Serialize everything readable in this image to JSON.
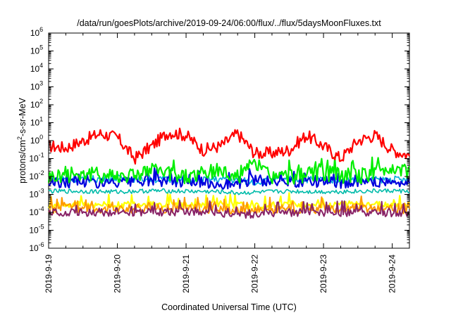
{
  "chart_data": {
    "type": "line",
    "title": "/data/run/goesPlots/archive/2019-09-24/06:00/flux/../flux/5daysMoonFluxes.txt",
    "xlabel": "Coordinated Universal Time (UTC)",
    "ylabel": {
      "prefix": "protons/cm",
      "sup": "2",
      "suffix": "-s-sr-MeV"
    },
    "yscale": "log",
    "ylim": [
      -6,
      6
    ],
    "yticks": [
      {
        "base": "10",
        "exp": "-6"
      },
      {
        "base": "10",
        "exp": "-5"
      },
      {
        "base": "10",
        "exp": "-4"
      },
      {
        "base": "10",
        "exp": "-3"
      },
      {
        "base": "10",
        "exp": "-2"
      },
      {
        "base": "10",
        "exp": "-1"
      },
      {
        "base": "10",
        "exp": "0"
      },
      {
        "base": "10",
        "exp": "1"
      },
      {
        "base": "10",
        "exp": "2"
      },
      {
        "base": "10",
        "exp": "3"
      },
      {
        "base": "10",
        "exp": "4"
      },
      {
        "base": "10",
        "exp": "5"
      },
      {
        "base": "10",
        "exp": "6"
      }
    ],
    "xlim": [
      "2019-9-19",
      "2019-9-24 06:00"
    ],
    "xticks": [
      "2019-9-19",
      "2019-9-20",
      "2019-9-21",
      "2019-9-22",
      "2019-9-23",
      "2019-9-24"
    ],
    "grid": false,
    "legend": "none",
    "series": [
      {
        "color": "#ff0000",
        "x": [
          0,
          0.25,
          0.5,
          0.75,
          1.0,
          1.25,
          1.5,
          1.75,
          2.0,
          2.25,
          2.5,
          2.75,
          3.0,
          3.25,
          3.5,
          3.75,
          4.0,
          4.25,
          4.5,
          4.75,
          5.0,
          5.25
        ],
        "values": [
          0.5,
          0.4,
          1.0,
          2.5,
          1.5,
          0.1,
          0.5,
          3.0,
          2.0,
          0.3,
          0.5,
          2.5,
          0.2,
          0.2,
          0.3,
          2.0,
          0.5,
          0.1,
          1.0,
          2.0,
          0.3,
          0.15
        ]
      },
      {
        "color": "#00ee00",
        "x": [
          0,
          0.5,
          1.0,
          1.5,
          2.0,
          2.5,
          2.75,
          3.0,
          3.25,
          3.5,
          4.0,
          4.5,
          5.0,
          5.25
        ],
        "values": [
          0.01,
          0.015,
          0.01,
          0.02,
          0.01,
          0.02,
          0.01,
          0.05,
          0.01,
          0.01,
          0.015,
          0.01,
          0.03,
          0.02
        ]
      },
      {
        "color": "#0000dd",
        "x": [
          0,
          0.5,
          1.0,
          1.5,
          2.0,
          2.5,
          2.75,
          3.0,
          3.25,
          3.5,
          4.0,
          4.5,
          5.0,
          5.25
        ],
        "values": [
          0.004,
          0.005,
          0.004,
          0.006,
          0.005,
          0.004,
          0.003,
          0.006,
          0.005,
          0.005,
          0.005,
          0.004,
          0.005,
          0.004
        ]
      },
      {
        "color": "#00aadd",
        "x": [
          0,
          0.5,
          1.0,
          1.5,
          2.0,
          2.5,
          2.75,
          3.0,
          3.25,
          3.5,
          4.0,
          4.5,
          5.0,
          5.25
        ],
        "values": [
          0.008,
          0.007,
          0.008,
          0.007,
          0.006,
          0.007,
          0.006,
          0.005,
          0.006,
          0.007,
          0.007,
          0.006,
          0.007,
          0.006
        ]
      },
      {
        "color": "#00bbaa",
        "x": [
          0,
          0.5,
          1.0,
          1.5,
          2.0,
          2.5,
          2.75,
          3.0,
          3.25,
          3.5,
          4.0,
          4.5,
          5.0,
          5.25
        ],
        "values": [
          0.0015,
          0.0015,
          0.0014,
          0.0016,
          0.0015,
          0.0014,
          0.0012,
          0.0013,
          0.0014,
          0.0015,
          0.0014,
          0.0015,
          0.0016,
          0.0015
        ]
      },
      {
        "color": "#ffff00",
        "x": [
          0,
          0.5,
          1.0,
          1.5,
          2.0,
          2.5,
          2.75,
          3.0,
          3.25,
          3.5,
          4.0,
          4.5,
          5.0,
          5.25
        ],
        "values": [
          0.00025,
          0.0003,
          0.00025,
          0.0003,
          0.00025,
          0.0003,
          0.00025,
          0.00022,
          0.00025,
          0.0003,
          0.00025,
          0.0003,
          0.00025,
          0.00025
        ]
      },
      {
        "color": "#ff9900",
        "x": [
          0,
          0.5,
          1.0,
          1.5,
          2.0,
          2.5,
          2.75,
          3.0,
          3.25,
          3.5,
          4.0,
          4.5,
          5.0,
          5.25
        ],
        "values": [
          0.00015,
          0.00018,
          0.00015,
          0.00018,
          0.00015,
          0.00016,
          0.00014,
          0.00013,
          0.00015,
          0.00016,
          0.00015,
          0.00017,
          0.00015,
          0.00015
        ]
      },
      {
        "color": "#882266",
        "x": [
          0,
          0.5,
          1.0,
          1.5,
          2.0,
          2.5,
          2.75,
          3.0,
          3.25,
          3.5,
          4.0,
          4.5,
          5.0,
          5.25
        ],
        "values": [
          0.0001,
          0.0001,
          9e-05,
          0.0001,
          0.0001,
          9e-05,
          8e-05,
          8e-05,
          9e-05,
          0.0001,
          9e-05,
          0.0001,
          9e-05,
          9e-05
        ]
      }
    ]
  }
}
